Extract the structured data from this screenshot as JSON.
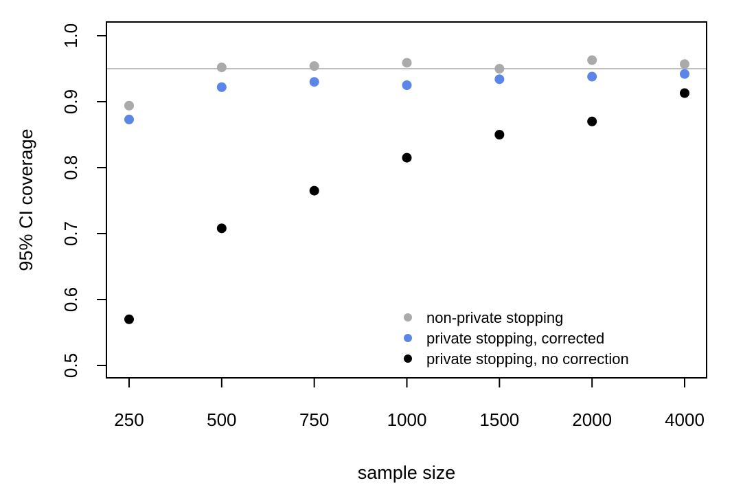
{
  "chart_data": {
    "type": "scatter",
    "title": "",
    "xlabel": "sample size",
    "ylabel": "95% CI coverage",
    "categories": [
      "250",
      "500",
      "750",
      "1000",
      "1500",
      "2000",
      "4000"
    ],
    "ylim": [
      0.5,
      1.0
    ],
    "y_ticks": [
      "0.5",
      "0.6",
      "0.7",
      "0.8",
      "0.9",
      "1.0"
    ],
    "grid": false,
    "reference_line": {
      "y": 0.95,
      "color": "#BEBEBE"
    },
    "legend_position": "bottom-right",
    "series": [
      {
        "name": "non-private stopping",
        "color": "#AAAAAA",
        "values": [
          0.894,
          0.952,
          0.954,
          0.959,
          0.95,
          0.963,
          0.957
        ]
      },
      {
        "name": "private stopping, corrected",
        "color": "#5B85E6",
        "values": [
          0.873,
          0.922,
          0.93,
          0.925,
          0.934,
          0.938,
          0.942
        ]
      },
      {
        "name": "private stopping, no correction",
        "color": "#000000",
        "values": [
          0.57,
          0.708,
          0.765,
          0.815,
          0.85,
          0.87,
          0.913
        ]
      }
    ]
  }
}
